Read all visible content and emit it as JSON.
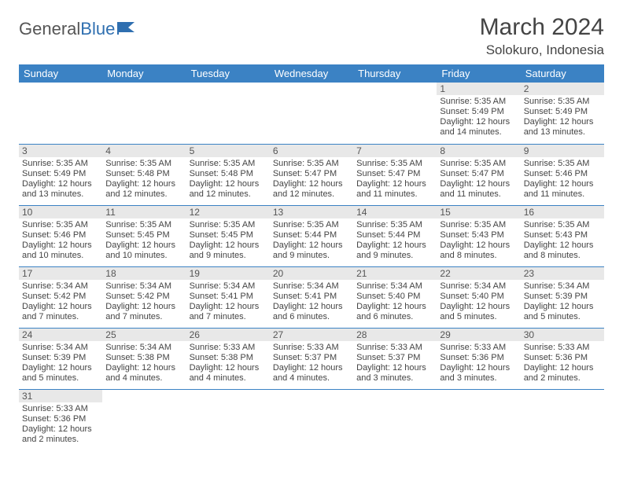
{
  "logo": {
    "text1": "General",
    "text2": "Blue"
  },
  "title": "March 2024",
  "location": "Solokuro, Indonesia",
  "colors": {
    "header_bg": "#3b82c4",
    "header_fg": "#ffffff",
    "daynum_bg": "#e8e8e8",
    "border": "#3b82c4",
    "text": "#444444"
  },
  "weekdays": [
    "Sunday",
    "Monday",
    "Tuesday",
    "Wednesday",
    "Thursday",
    "Friday",
    "Saturday"
  ],
  "weeks": [
    [
      null,
      null,
      null,
      null,
      null,
      {
        "n": "1",
        "sunrise": "Sunrise: 5:35 AM",
        "sunset": "Sunset: 5:49 PM",
        "daylight": "Daylight: 12 hours and 14 minutes."
      },
      {
        "n": "2",
        "sunrise": "Sunrise: 5:35 AM",
        "sunset": "Sunset: 5:49 PM",
        "daylight": "Daylight: 12 hours and 13 minutes."
      }
    ],
    [
      {
        "n": "3",
        "sunrise": "Sunrise: 5:35 AM",
        "sunset": "Sunset: 5:49 PM",
        "daylight": "Daylight: 12 hours and 13 minutes."
      },
      {
        "n": "4",
        "sunrise": "Sunrise: 5:35 AM",
        "sunset": "Sunset: 5:48 PM",
        "daylight": "Daylight: 12 hours and 12 minutes."
      },
      {
        "n": "5",
        "sunrise": "Sunrise: 5:35 AM",
        "sunset": "Sunset: 5:48 PM",
        "daylight": "Daylight: 12 hours and 12 minutes."
      },
      {
        "n": "6",
        "sunrise": "Sunrise: 5:35 AM",
        "sunset": "Sunset: 5:47 PM",
        "daylight": "Daylight: 12 hours and 12 minutes."
      },
      {
        "n": "7",
        "sunrise": "Sunrise: 5:35 AM",
        "sunset": "Sunset: 5:47 PM",
        "daylight": "Daylight: 12 hours and 11 minutes."
      },
      {
        "n": "8",
        "sunrise": "Sunrise: 5:35 AM",
        "sunset": "Sunset: 5:47 PM",
        "daylight": "Daylight: 12 hours and 11 minutes."
      },
      {
        "n": "9",
        "sunrise": "Sunrise: 5:35 AM",
        "sunset": "Sunset: 5:46 PM",
        "daylight": "Daylight: 12 hours and 11 minutes."
      }
    ],
    [
      {
        "n": "10",
        "sunrise": "Sunrise: 5:35 AM",
        "sunset": "Sunset: 5:46 PM",
        "daylight": "Daylight: 12 hours and 10 minutes."
      },
      {
        "n": "11",
        "sunrise": "Sunrise: 5:35 AM",
        "sunset": "Sunset: 5:45 PM",
        "daylight": "Daylight: 12 hours and 10 minutes."
      },
      {
        "n": "12",
        "sunrise": "Sunrise: 5:35 AM",
        "sunset": "Sunset: 5:45 PM",
        "daylight": "Daylight: 12 hours and 9 minutes."
      },
      {
        "n": "13",
        "sunrise": "Sunrise: 5:35 AM",
        "sunset": "Sunset: 5:44 PM",
        "daylight": "Daylight: 12 hours and 9 minutes."
      },
      {
        "n": "14",
        "sunrise": "Sunrise: 5:35 AM",
        "sunset": "Sunset: 5:44 PM",
        "daylight": "Daylight: 12 hours and 9 minutes."
      },
      {
        "n": "15",
        "sunrise": "Sunrise: 5:35 AM",
        "sunset": "Sunset: 5:43 PM",
        "daylight": "Daylight: 12 hours and 8 minutes."
      },
      {
        "n": "16",
        "sunrise": "Sunrise: 5:35 AM",
        "sunset": "Sunset: 5:43 PM",
        "daylight": "Daylight: 12 hours and 8 minutes."
      }
    ],
    [
      {
        "n": "17",
        "sunrise": "Sunrise: 5:34 AM",
        "sunset": "Sunset: 5:42 PM",
        "daylight": "Daylight: 12 hours and 7 minutes."
      },
      {
        "n": "18",
        "sunrise": "Sunrise: 5:34 AM",
        "sunset": "Sunset: 5:42 PM",
        "daylight": "Daylight: 12 hours and 7 minutes."
      },
      {
        "n": "19",
        "sunrise": "Sunrise: 5:34 AM",
        "sunset": "Sunset: 5:41 PM",
        "daylight": "Daylight: 12 hours and 7 minutes."
      },
      {
        "n": "20",
        "sunrise": "Sunrise: 5:34 AM",
        "sunset": "Sunset: 5:41 PM",
        "daylight": "Daylight: 12 hours and 6 minutes."
      },
      {
        "n": "21",
        "sunrise": "Sunrise: 5:34 AM",
        "sunset": "Sunset: 5:40 PM",
        "daylight": "Daylight: 12 hours and 6 minutes."
      },
      {
        "n": "22",
        "sunrise": "Sunrise: 5:34 AM",
        "sunset": "Sunset: 5:40 PM",
        "daylight": "Daylight: 12 hours and 5 minutes."
      },
      {
        "n": "23",
        "sunrise": "Sunrise: 5:34 AM",
        "sunset": "Sunset: 5:39 PM",
        "daylight": "Daylight: 12 hours and 5 minutes."
      }
    ],
    [
      {
        "n": "24",
        "sunrise": "Sunrise: 5:34 AM",
        "sunset": "Sunset: 5:39 PM",
        "daylight": "Daylight: 12 hours and 5 minutes."
      },
      {
        "n": "25",
        "sunrise": "Sunrise: 5:34 AM",
        "sunset": "Sunset: 5:38 PM",
        "daylight": "Daylight: 12 hours and 4 minutes."
      },
      {
        "n": "26",
        "sunrise": "Sunrise: 5:33 AM",
        "sunset": "Sunset: 5:38 PM",
        "daylight": "Daylight: 12 hours and 4 minutes."
      },
      {
        "n": "27",
        "sunrise": "Sunrise: 5:33 AM",
        "sunset": "Sunset: 5:37 PM",
        "daylight": "Daylight: 12 hours and 4 minutes."
      },
      {
        "n": "28",
        "sunrise": "Sunrise: 5:33 AM",
        "sunset": "Sunset: 5:37 PM",
        "daylight": "Daylight: 12 hours and 3 minutes."
      },
      {
        "n": "29",
        "sunrise": "Sunrise: 5:33 AM",
        "sunset": "Sunset: 5:36 PM",
        "daylight": "Daylight: 12 hours and 3 minutes."
      },
      {
        "n": "30",
        "sunrise": "Sunrise: 5:33 AM",
        "sunset": "Sunset: 5:36 PM",
        "daylight": "Daylight: 12 hours and 2 minutes."
      }
    ],
    [
      {
        "n": "31",
        "sunrise": "Sunrise: 5:33 AM",
        "sunset": "Sunset: 5:36 PM",
        "daylight": "Daylight: 12 hours and 2 minutes."
      },
      null,
      null,
      null,
      null,
      null,
      null
    ]
  ]
}
